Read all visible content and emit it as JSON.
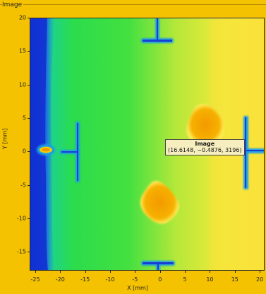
{
  "panel": {
    "title": "Image"
  },
  "axes": {
    "x_label": "X [mm]",
    "y_label": "Y [mm]",
    "x_ticks": [
      "-25",
      "-20",
      "-15",
      "-10",
      "-5",
      "0",
      "5",
      "10",
      "15",
      "20"
    ],
    "y_ticks": [
      "20",
      "15",
      "10",
      "5",
      "0",
      "-5",
      "-10",
      "-15"
    ]
  },
  "tooltip": {
    "title": "Image",
    "value": "(16.6148, −0.4876, 3196)"
  },
  "colors": {
    "background": "#f4c200",
    "blue_edge": "#1a3fe0",
    "green": "#33dd55",
    "yellow": "#f6ef3a",
    "orange_spot": "#f5b300"
  }
}
